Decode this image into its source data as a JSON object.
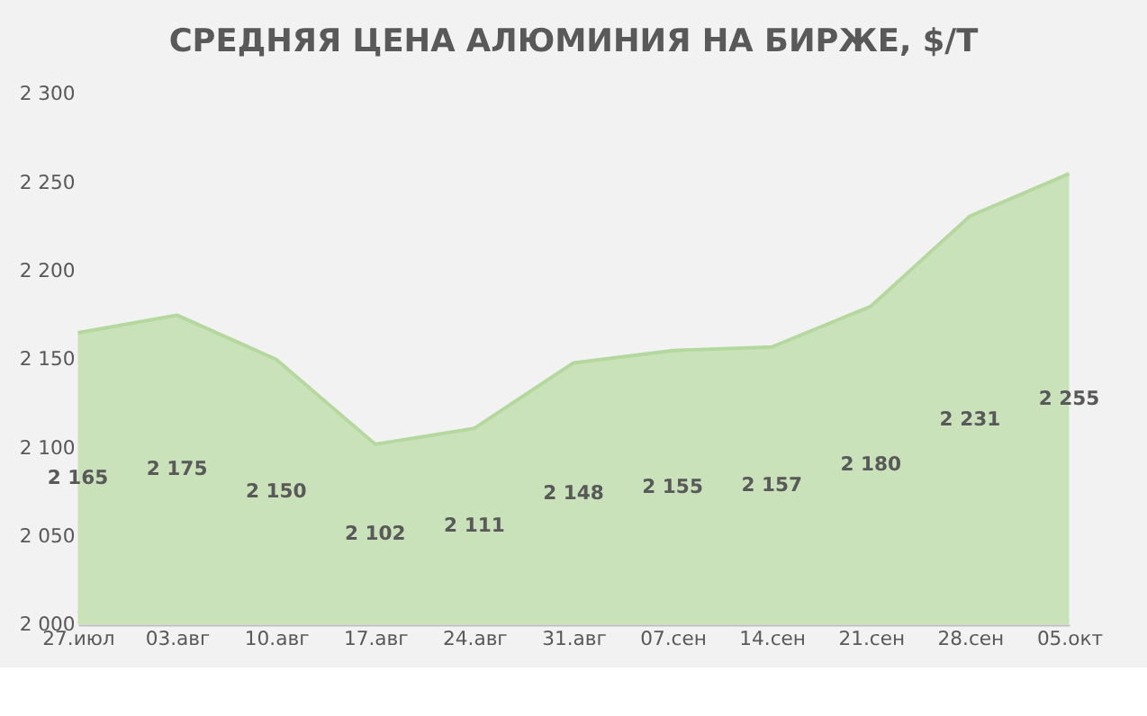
{
  "chart_data": {
    "type": "area",
    "title": "СРЕДНЯЯ ЦЕНА АЛЮМИНИЯ НА БИРЖЕ, $/Т",
    "categories": [
      "27.июл",
      "03.авг",
      "10.авг",
      "17.авг",
      "24.авг",
      "31.авг",
      "07.сен",
      "14.сен",
      "21.сен",
      "28.сен",
      "05.окт"
    ],
    "series": [
      {
        "color": "#c5e0b4",
        "values": [
          2165,
          2175,
          2150,
          2102,
          2111,
          2148,
          2155,
          2157,
          2180,
          2231,
          2255
        ]
      }
    ],
    "value_labels": [
      "2 165",
      "2 175",
      "2 150",
      "2 102",
      "2 111",
      "2 148",
      "2 155",
      "2 157",
      "2 180",
      "2 231",
      "2 255"
    ],
    "ylim": [
      2000,
      2300
    ],
    "yticks": [
      {
        "value": 2000,
        "label": "2 000"
      },
      {
        "value": 2050,
        "label": "2 050"
      },
      {
        "value": 2100,
        "label": "2 100"
      },
      {
        "value": 2150,
        "label": "2 150"
      },
      {
        "value": 2200,
        "label": "2 200"
      },
      {
        "value": 2250,
        "label": "2 250"
      },
      {
        "value": 2300,
        "label": "2 300"
      }
    ],
    "grid": false
  }
}
